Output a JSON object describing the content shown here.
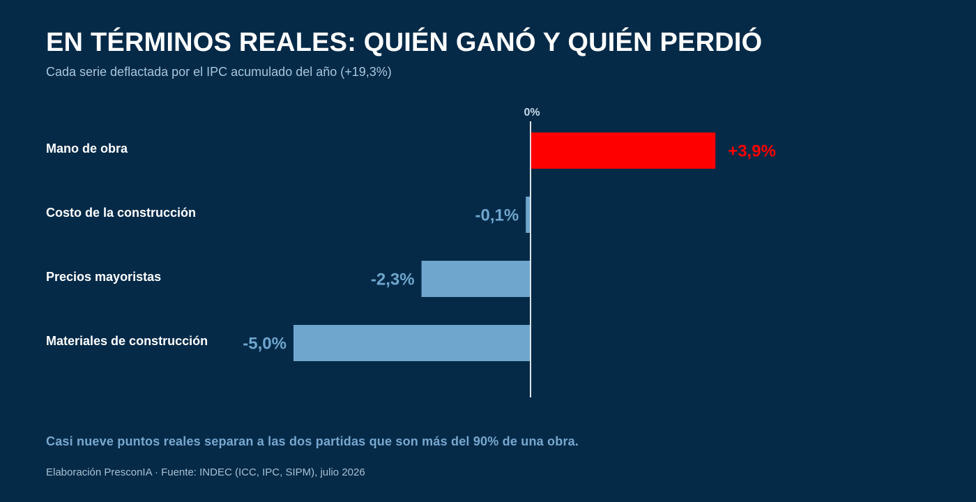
{
  "header": {
    "title": "EN TÉRMINOS REALES: QUIÉN GANÓ Y QUIÉN PERDIÓ",
    "subtitle": "Cada serie deflactada por el IPC acumulado del año (+19,3%)"
  },
  "chart_data": {
    "type": "bar",
    "orientation": "horizontal",
    "zero_label": "0%",
    "categories": [
      "Mano de obra",
      "Costo de la construcción",
      "Precios mayoristas",
      "Materiales de construcción"
    ],
    "values": [
      3.9,
      -0.1,
      -2.3,
      -5.0
    ],
    "value_labels": [
      "+3,9%",
      "-0,1%",
      "-2,3%",
      "-5,0%"
    ],
    "xlim": [
      -5.0,
      3.9
    ],
    "grid": false,
    "legend": "none",
    "colors": {
      "positive": "#ff0000",
      "negative": "#6fa6cd",
      "zero_line": "#ffffff"
    }
  },
  "footer": {
    "takeaway": "Casi nueve puntos reales separan a las dos partidas que son más del 90% de una obra.",
    "source": "Elaboración PresconIA · Fuente: INDEC (ICC, IPC, SIPM), julio 2026"
  }
}
